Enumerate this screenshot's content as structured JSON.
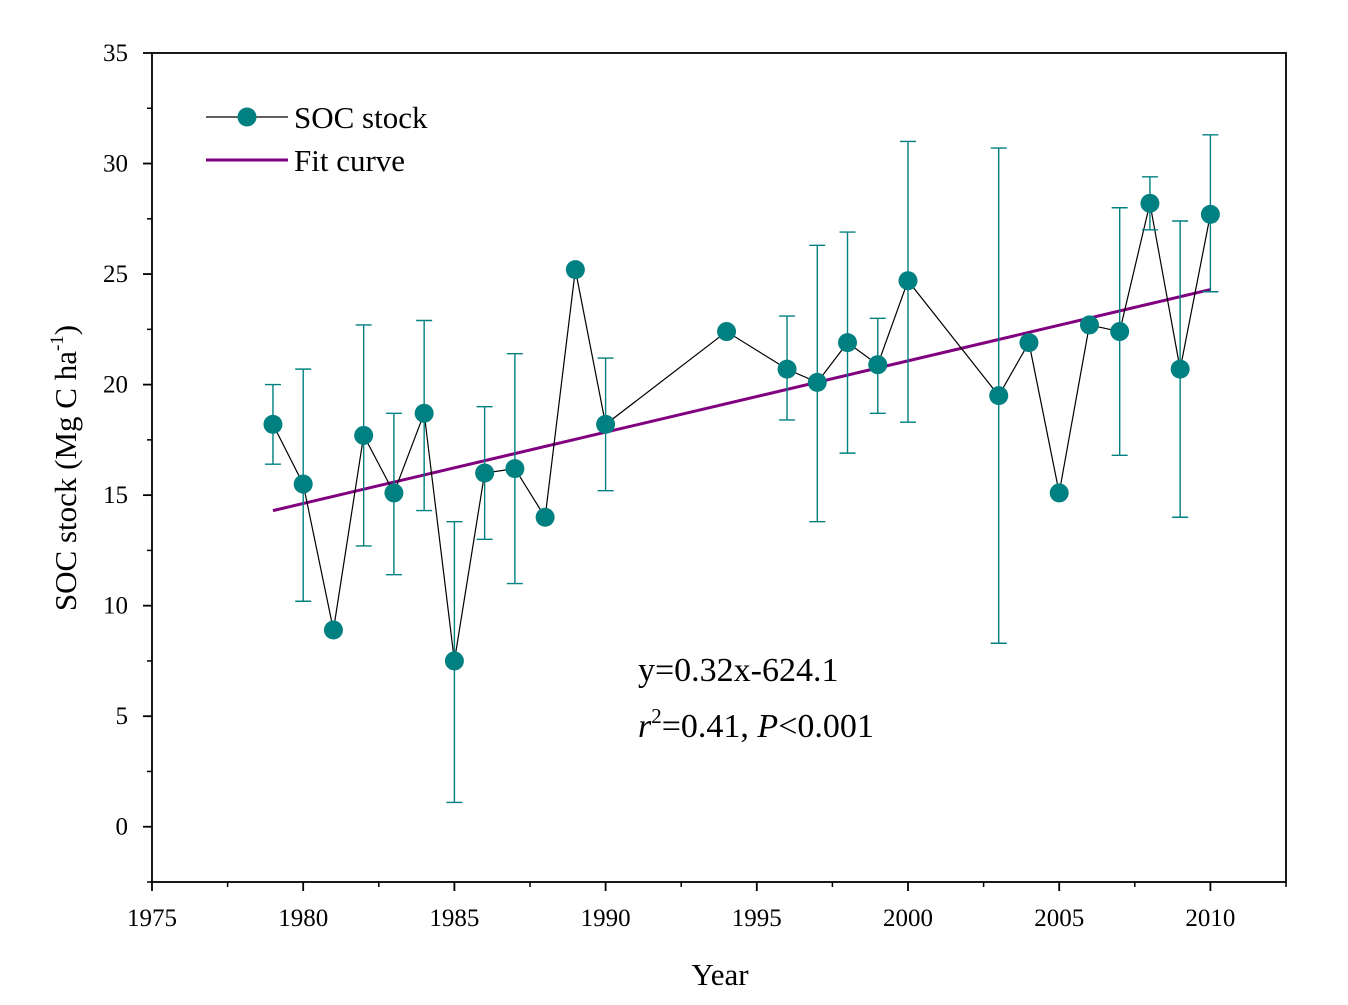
{
  "chart_data": {
    "type": "scatter",
    "xlabel": "Year",
    "ylabel": "SOC stock (Mg C ha",
    "ylabel_superscript": "-1",
    "ylabel_suffix": ")",
    "xlim": [
      1975,
      2012.5
    ],
    "ylim": [
      -2.5,
      35
    ],
    "x_ticks": [
      1975,
      1980,
      1985,
      1990,
      1995,
      2000,
      2005,
      2010
    ],
    "y_ticks": [
      0,
      5,
      10,
      15,
      20,
      25,
      30,
      35
    ],
    "grid": false,
    "legend_position": "top-left",
    "series": [
      {
        "name": "SOC stock",
        "color": "#008080",
        "line_color": "#000000",
        "marker": "circle",
        "x": [
          1979,
          1980,
          1981,
          1982,
          1983,
          1984,
          1985,
          1986,
          1987,
          1988,
          1989,
          1990,
          1994,
          1996,
          1997,
          1998,
          1999,
          2000,
          2003,
          2004,
          2005,
          2006,
          2007,
          2008,
          2009,
          2010
        ],
        "y": [
          18.2,
          15.5,
          8.9,
          17.7,
          15.1,
          18.7,
          7.5,
          16.0,
          16.2,
          14.0,
          25.2,
          18.2,
          22.4,
          20.7,
          20.1,
          21.9,
          20.9,
          24.7,
          19.5,
          21.9,
          15.1,
          22.7,
          22.4,
          28.2,
          20.7,
          27.7
        ],
        "err_low": [
          16.4,
          10.2,
          null,
          12.7,
          11.4,
          14.3,
          1.1,
          13.0,
          11.0,
          null,
          null,
          15.2,
          null,
          18.4,
          13.8,
          16.9,
          18.7,
          18.3,
          8.3,
          null,
          null,
          null,
          16.8,
          27.0,
          14.0,
          24.2
        ],
        "err_high": [
          20.0,
          20.7,
          null,
          22.7,
          18.7,
          22.9,
          13.8,
          19.0,
          21.4,
          null,
          null,
          21.2,
          null,
          23.1,
          26.3,
          26.9,
          23.0,
          31.0,
          30.7,
          null,
          null,
          null,
          28.0,
          29.4,
          27.4,
          31.3
        ]
      },
      {
        "name": "Fit curve",
        "color": "#800080",
        "type": "line",
        "x": [
          1979,
          2010
        ],
        "y": [
          14.3,
          24.3
        ]
      }
    ],
    "annotations": {
      "equation": "y=0.32x-624.1",
      "r_symbol": "r",
      "r_exponent": "2",
      "r_value": "=0.41, ",
      "p_symbol": "P",
      "p_value": "<0.001"
    }
  }
}
